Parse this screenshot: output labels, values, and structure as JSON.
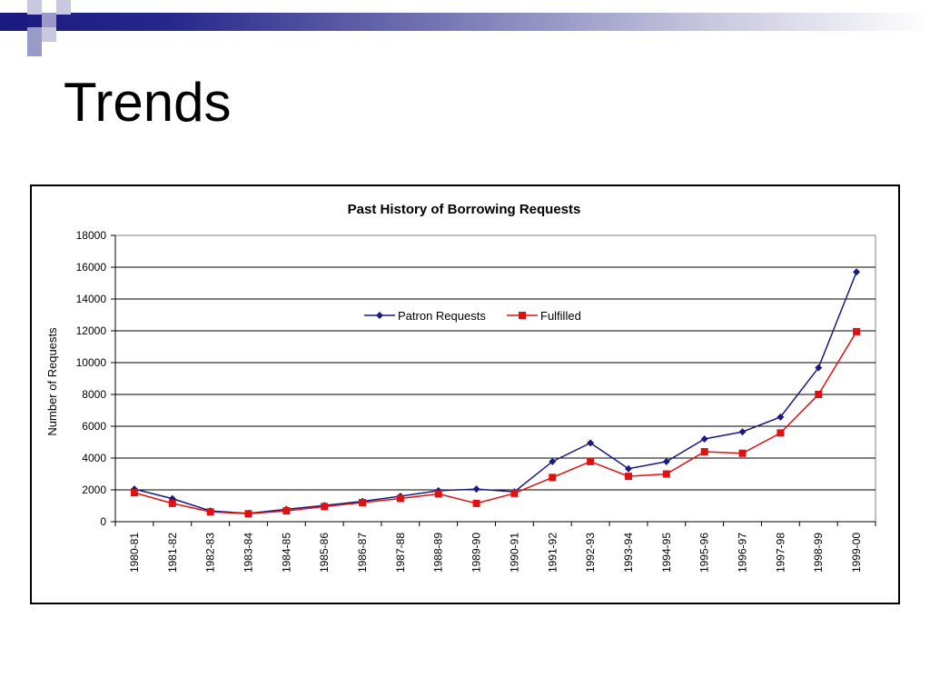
{
  "slide": {
    "title": "Trends",
    "theme_colors": {
      "navy": "#1a1a80",
      "lavender": "#9a9ac8",
      "light": "#c8c8e0"
    }
  },
  "chart_data": {
    "type": "line",
    "title": "Past History of Borrowing Requests",
    "xlabel": "",
    "ylabel": "Number of Requests",
    "ylim": [
      0,
      18000
    ],
    "yticks": [
      0,
      2000,
      4000,
      6000,
      8000,
      10000,
      12000,
      14000,
      16000,
      18000
    ],
    "grid": true,
    "legend_position": "top-center",
    "categories": [
      "1980-81",
      "1981-82",
      "1982-83",
      "1983-84",
      "1984-85",
      "1985-86",
      "1986-87",
      "1987-88",
      "1988-89",
      "1989-90",
      "1990-91",
      "1991-92",
      "1992-93",
      "1993-94",
      "1994-95",
      "1995-96",
      "1996-97",
      "1997-98",
      "1998-99",
      "1999-00"
    ],
    "series": [
      {
        "name": "Patron Requests",
        "color": "#1a1a80",
        "marker": "diamond",
        "values": [
          2050,
          1450,
          680,
          520,
          780,
          1020,
          1280,
          1600,
          1950,
          2050,
          1880,
          3780,
          4950,
          3330,
          3780,
          5200,
          5650,
          6580,
          9680,
          15700
        ]
      },
      {
        "name": "Fulfilled",
        "color": "#dd1111",
        "marker": "square",
        "values": [
          1820,
          1150,
          620,
          500,
          680,
          950,
          1200,
          1460,
          1750,
          1150,
          1780,
          2780,
          3780,
          2850,
          3000,
          4400,
          4300,
          5580,
          8000,
          11950
        ]
      }
    ]
  }
}
